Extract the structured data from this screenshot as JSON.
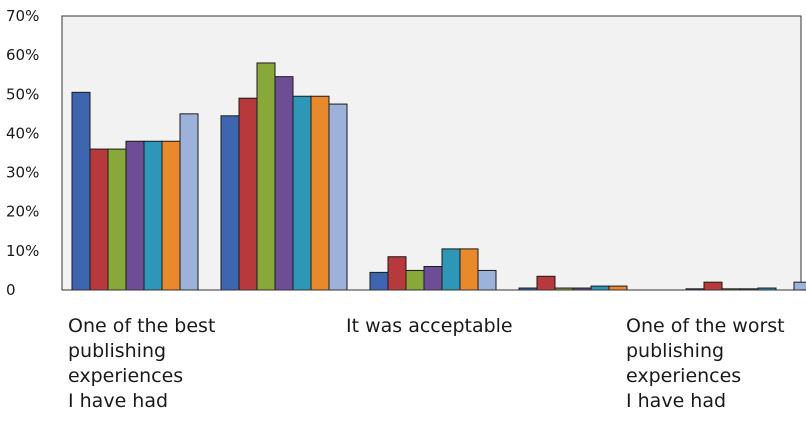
{
  "chart_data": {
    "type": "bar",
    "title": "",
    "xlabel": "",
    "ylabel": "",
    "ylim": [
      0,
      70
    ],
    "yticks": [
      "0",
      "10%",
      "20%",
      "30%",
      "40%",
      "50%",
      "60%",
      "70%"
    ],
    "grid": false,
    "legend": "none",
    "category_labels": [
      "One of the best\npublishing\nexperiences\nI have had",
      "It was acceptable",
      "One of the worst\npublishing\nexperiences\nI have had"
    ],
    "categories": [
      "1",
      "2",
      "3",
      "4",
      "5"
    ],
    "series_colors": [
      "#3E66B0",
      "#B8393B",
      "#88A83A",
      "#6E4D97",
      "#2E97B7",
      "#E8892C",
      "#9CB2DA"
    ],
    "series": [
      {
        "values": [
          50.5,
          44.5,
          4.5,
          0.5,
          0.3
        ]
      },
      {
        "values": [
          36,
          49,
          8.5,
          3.5,
          2
        ]
      },
      {
        "values": [
          36,
          58,
          5,
          0.5,
          0.3
        ]
      },
      {
        "values": [
          38,
          54.5,
          6,
          0.5,
          0.3
        ]
      },
      {
        "values": [
          38,
          49.5,
          10.5,
          1,
          0.5
        ]
      },
      {
        "values": [
          38,
          49.5,
          10.5,
          1,
          0
        ]
      },
      {
        "values": [
          45,
          47.5,
          5,
          0,
          2
        ]
      }
    ]
  }
}
